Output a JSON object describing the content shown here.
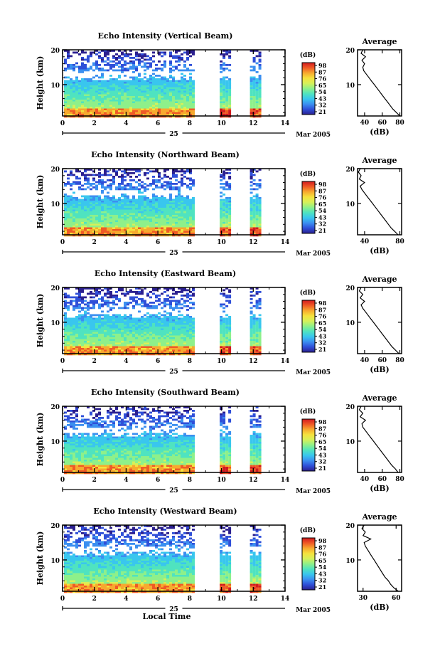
{
  "chart_data": [
    {
      "type": "heatmap",
      "title": "Echo Intensity (Vertical Beam)",
      "ylabel": "Height (km)",
      "y_ticks": [
        "20",
        "10"
      ],
      "x_ticks": [
        "0",
        "2",
        "4",
        "6",
        "8",
        "10",
        "12",
        "14"
      ],
      "xlim": [
        0,
        14
      ],
      "ylim": [
        1,
        20
      ],
      "date_day": "25",
      "date_month": "Mar 2005",
      "colorbar_unit": "(dB)",
      "colorbar_labels": [
        "98",
        "87",
        "76",
        "65",
        "54",
        "43",
        "32",
        "21"
      ],
      "data_segments": [
        [
          0,
          8.2
        ],
        [
          9.8,
          10.5
        ],
        [
          11.7,
          12.4
        ]
      ],
      "average_profile": {
        "title": "Average",
        "xlabel": "(dB)",
        "x_ticks": [
          "40",
          "60",
          "80"
        ],
        "y_ticks": [
          "20",
          "10"
        ],
        "xlim": [
          32,
          82
        ],
        "height": [
          1,
          2,
          3,
          4,
          5,
          6,
          7,
          8,
          9,
          10,
          11,
          12,
          13,
          14,
          15,
          16,
          17,
          18,
          19,
          20
        ],
        "value": [
          80,
          76,
          72,
          69,
          66,
          63,
          60,
          57,
          54,
          51,
          48,
          45,
          42,
          39,
          38,
          40,
          37,
          41,
          36,
          38
        ]
      }
    },
    {
      "type": "heatmap",
      "title": "Echo Intensity (Northward Beam)",
      "ylabel": "Height (km)",
      "y_ticks": [
        "20",
        "10"
      ],
      "x_ticks": [
        "0",
        "2",
        "4",
        "6",
        "8",
        "10",
        "12",
        "14"
      ],
      "xlim": [
        0,
        14
      ],
      "ylim": [
        1,
        20
      ],
      "date_day": "25",
      "date_month": "Mar 2005",
      "colorbar_unit": "(dB)",
      "colorbar_labels": [
        "98",
        "87",
        "76",
        "65",
        "54",
        "43",
        "32",
        "21"
      ],
      "data_segments": [
        [
          0,
          8.2
        ],
        [
          9.8,
          10.5
        ],
        [
          11.7,
          12.4
        ]
      ],
      "average_profile": {
        "title": "Average",
        "xlabel": "(dB)",
        "x_ticks": [
          "40",
          "80"
        ],
        "y_ticks": [
          "20",
          "10"
        ],
        "xlim": [
          32,
          82
        ],
        "height": [
          1,
          2,
          3,
          4,
          5,
          6,
          7,
          8,
          9,
          10,
          11,
          12,
          13,
          14,
          15,
          16,
          17,
          18,
          19,
          20
        ],
        "value": [
          78,
          74,
          70,
          67,
          64,
          61,
          58,
          55,
          52,
          49,
          46,
          43,
          40,
          37,
          35,
          40,
          34,
          36,
          33,
          35
        ]
      }
    },
    {
      "type": "heatmap",
      "title": "Echo Intensity (Eastward Beam)",
      "ylabel": "Height (km)",
      "y_ticks": [
        "20",
        "10"
      ],
      "x_ticks": [
        "0",
        "2",
        "4",
        "6",
        "8",
        "10",
        "12",
        "14"
      ],
      "xlim": [
        0,
        14
      ],
      "ylim": [
        1,
        20
      ],
      "date_day": "25",
      "date_month": "Mar 2005",
      "colorbar_unit": "(dB)",
      "colorbar_labels": [
        "98",
        "87",
        "76",
        "65",
        "54",
        "43",
        "32",
        "21"
      ],
      "data_segments": [
        [
          0,
          8.2
        ],
        [
          9.8,
          10.5
        ],
        [
          11.7,
          12.4
        ]
      ],
      "average_profile": {
        "title": "Average",
        "xlabel": "(dB)",
        "x_ticks": [
          "40",
          "60",
          "80"
        ],
        "y_ticks": [
          "20",
          "10"
        ],
        "xlim": [
          32,
          82
        ],
        "height": [
          1,
          2,
          3,
          4,
          5,
          6,
          7,
          8,
          9,
          10,
          11,
          12,
          13,
          14,
          15,
          16,
          17,
          18,
          19,
          20
        ],
        "value": [
          79,
          75,
          71,
          68,
          65,
          62,
          59,
          56,
          53,
          50,
          47,
          44,
          41,
          38,
          36,
          40,
          35,
          38,
          34,
          36
        ]
      }
    },
    {
      "type": "heatmap",
      "title": "Echo Intensity (Southward Beam)",
      "ylabel": "Height (km)",
      "y_ticks": [
        "20",
        "10"
      ],
      "x_ticks": [
        "0",
        "2",
        "4",
        "6",
        "8",
        "10",
        "12",
        "14"
      ],
      "xlim": [
        0,
        14
      ],
      "ylim": [
        1,
        20
      ],
      "date_day": "25",
      "date_month": "Mar 2005",
      "colorbar_unit": "(dB)",
      "colorbar_labels": [
        "98",
        "87",
        "76",
        "65",
        "54",
        "43",
        "32",
        "21"
      ],
      "data_segments": [
        [
          0,
          8.2
        ],
        [
          9.8,
          10.5
        ],
        [
          11.7,
          12.4
        ]
      ],
      "average_profile": {
        "title": "Average",
        "xlabel": "(dB)",
        "x_ticks": [
          "40",
          "60",
          "80"
        ],
        "y_ticks": [
          "20",
          "10"
        ],
        "xlim": [
          32,
          82
        ],
        "height": [
          1,
          2,
          3,
          4,
          5,
          6,
          7,
          8,
          9,
          10,
          11,
          12,
          13,
          14,
          15,
          16,
          17,
          18,
          19,
          20
        ],
        "value": [
          78,
          75,
          71,
          68,
          65,
          62,
          59,
          56,
          53,
          50,
          47,
          44,
          41,
          38,
          37,
          41,
          35,
          38,
          34,
          36
        ]
      }
    },
    {
      "type": "heatmap",
      "title": "Echo Intensity (Westward Beam)",
      "ylabel": "Height (km)",
      "y_ticks": [
        "20",
        "10"
      ],
      "x_ticks": [
        "0",
        "2",
        "4",
        "6",
        "8",
        "10",
        "12",
        "14"
      ],
      "xlim": [
        0,
        14
      ],
      "ylim": [
        1,
        20
      ],
      "date_day": "25",
      "date_month": "Mar 2005",
      "colorbar_unit": "(dB)",
      "colorbar_labels": [
        "98",
        "87",
        "76",
        "65",
        "54",
        "43",
        "32",
        "21"
      ],
      "data_segments": [
        [
          0,
          8.2
        ],
        [
          9.8,
          10.5
        ],
        [
          11.7,
          12.4
        ]
      ],
      "xlabel": "Local Time",
      "average_profile": {
        "title": "Average",
        "xlabel": "(dB)",
        "x_ticks": [
          "30",
          "60"
        ],
        "y_ticks": [
          "20",
          "10"
        ],
        "xlim": [
          25,
          65
        ],
        "height": [
          1,
          2,
          3,
          4,
          5,
          6,
          7,
          8,
          9,
          10,
          11,
          12,
          13,
          14,
          15,
          16,
          17,
          18,
          19,
          20
        ],
        "value": [
          62,
          58,
          55,
          53,
          50,
          48,
          46,
          44,
          42,
          40,
          38,
          36,
          34,
          32,
          31,
          37,
          30,
          32,
          29,
          31
        ]
      }
    }
  ],
  "colors": {
    "colormap": [
      "#2b1f8f",
      "#2f4fd8",
      "#3b8ff0",
      "#39c6ee",
      "#4fe3c0",
      "#8ef08a",
      "#d6f05a",
      "#f5e23d",
      "#f7a92e",
      "#ef5a26",
      "#d11a1f"
    ],
    "axis": "#000000"
  }
}
